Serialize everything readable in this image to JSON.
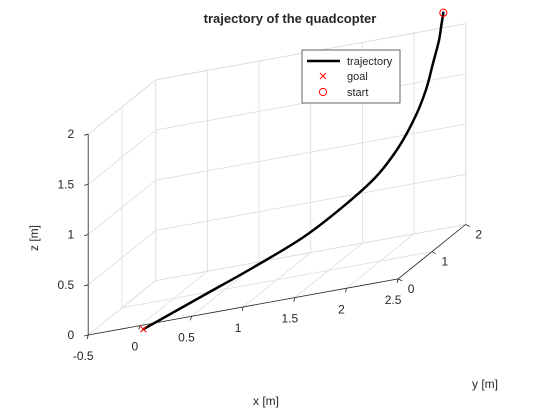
{
  "chart_data": {
    "type": "line3d",
    "title": "trajectory of the quadcopter",
    "xlabel": "x [m]",
    "ylabel": "y [m]",
    "zlabel": "z [m]",
    "xlim": [
      -0.5,
      2.5
    ],
    "ylim": [
      0,
      2
    ],
    "zlim": [
      0,
      2
    ],
    "xticks": [
      -0.5,
      0,
      0.5,
      1,
      1.5,
      2,
      2.5
    ],
    "xtick_labels": [
      "-0.5",
      "0",
      "0.5",
      "1",
      "1.5",
      "2",
      "2.5"
    ],
    "yticks": [
      0,
      1,
      2
    ],
    "ytick_labels": [
      "0",
      "1",
      "2"
    ],
    "zticks": [
      0,
      0.5,
      1,
      1.5,
      2
    ],
    "ztick_labels": [
      "0",
      "0.5",
      "1",
      "1.5",
      "2"
    ],
    "grid": true,
    "legend_position": "top-right",
    "legend": [
      {
        "label": "trajectory",
        "marker": "line",
        "color": "#000000"
      },
      {
        "label": "goal",
        "marker": "x",
        "color": "#ff0000"
      },
      {
        "label": "start",
        "marker": "o",
        "color": "#ff0000"
      }
    ],
    "series": [
      {
        "name": "trajectory",
        "color": "#000000",
        "points": [
          {
            "x": 0.1,
            "y": -0.2,
            "z": 0.0
          },
          {
            "x": 0.6,
            "y": 0.0,
            "z": 0.18
          },
          {
            "x": 1.05,
            "y": 0.2,
            "z": 0.34
          },
          {
            "x": 1.45,
            "y": 0.43,
            "z": 0.5
          },
          {
            "x": 1.75,
            "y": 0.68,
            "z": 0.68
          },
          {
            "x": 1.98,
            "y": 0.93,
            "z": 0.86
          },
          {
            "x": 2.12,
            "y": 1.16,
            "z": 1.06
          },
          {
            "x": 2.21,
            "y": 1.37,
            "z": 1.28
          },
          {
            "x": 2.26,
            "y": 1.55,
            "z": 1.5
          },
          {
            "x": 2.28,
            "y": 1.7,
            "z": 1.72
          },
          {
            "x": 2.3,
            "y": 1.82,
            "z": 1.92
          },
          {
            "x": 2.3,
            "y": 1.9,
            "z": 2.07
          },
          {
            "x": 2.3,
            "y": 1.95,
            "z": 2.16
          }
        ]
      }
    ],
    "goal": {
      "x": 0.1,
      "y": -0.2,
      "z": 0.0
    },
    "start": {
      "x": 2.3,
      "y": 1.95,
      "z": 2.16
    }
  },
  "colors": {
    "grid": "#dcdcdc",
    "axis": "#262626",
    "trajectory": "#000000",
    "markers": "#ff0000"
  }
}
